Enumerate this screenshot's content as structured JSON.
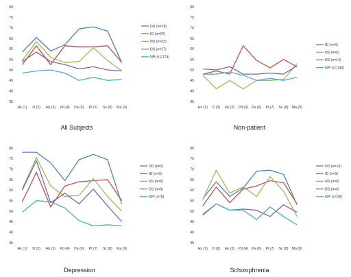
{
  "chart_data": [
    {
      "type": "line",
      "title": "All Subjects",
      "categories": [
        "Hs (1)",
        "D (2)",
        "Hy (3)",
        "Pd (4)",
        "Pa (6)",
        "Pt (7)",
        "Sc (8)",
        "Ma (9)"
      ],
      "ylim": [
        35,
        80
      ],
      "yticks": [
        35,
        40,
        45,
        50,
        55,
        60,
        65,
        70,
        75,
        80
      ],
      "series": [
        {
          "name": "DD (n=18)",
          "color": "#4f81bd",
          "values": [
            58.5,
            65.5,
            59,
            62,
            69.5,
            70.5,
            68.5,
            53.5
          ]
        },
        {
          "name": "ID (n=24)",
          "color": "#c0504d",
          "values": [
            52.5,
            61.5,
            52.5,
            61.5,
            61,
            61,
            61.5,
            53.5
          ]
        },
        {
          "name": "NS (n=22)",
          "color": "#9bbb59",
          "values": [
            54.5,
            63.5,
            56,
            53.5,
            54,
            60.5,
            54.5,
            49.5
          ]
        },
        {
          "name": "DS (n=27)",
          "color": "#8064a2",
          "values": [
            54,
            58.5,
            54,
            52.5,
            50.5,
            51.5,
            50,
            49.5
          ]
        },
        {
          "name": "NPI (n=174)",
          "color": "#4bacc6",
          "values": [
            48.5,
            49.5,
            50,
            48.5,
            45,
            46.5,
            45,
            45.5
          ]
        }
      ]
    },
    {
      "type": "line",
      "title": "Non-patient",
      "categories": [
        "Hs (1)",
        "D (2)",
        "Hy (3)",
        "Pd (4)",
        "Pa (6)",
        "Pt (7)",
        "Sc (8)",
        "Ma (9)"
      ],
      "ylim": [
        35,
        80
      ],
      "yticks": [
        35,
        40,
        45,
        50,
        55,
        60,
        65,
        70,
        75,
        80
      ],
      "series": [
        {
          "name": "ID (n=6)",
          "color": "#c0504d",
          "values": [
            48,
            49.5,
            48,
            61.5,
            54.5,
            51,
            55,
            51.5
          ]
        },
        {
          "name": "NS (n=6)",
          "color": "#9bbb59",
          "values": [
            47.5,
            41,
            45,
            41,
            45,
            45,
            45.5,
            53
          ]
        },
        {
          "name": "DS (n=14)",
          "color": "#8064a2",
          "values": [
            50.5,
            50,
            51.5,
            48,
            48,
            48.5,
            48,
            52
          ]
        },
        {
          "name": "NPI (n=140)",
          "color": "#4bacc6",
          "values": [
            48,
            48,
            49,
            47.5,
            45,
            46,
            45,
            46.5
          ]
        }
      ]
    },
    {
      "type": "line",
      "title": "Depression",
      "categories": [
        "Hs (1)",
        "D (2)",
        "Hy (3)",
        "Pd (4)",
        "Pa (6)",
        "Pt (7)",
        "Sc (8)",
        "Ma (9)"
      ],
      "ylim": [
        35,
        80
      ],
      "yticks": [
        35,
        40,
        45,
        50,
        55,
        60,
        65,
        70,
        75,
        80
      ],
      "series": [
        {
          "name": "DD (n=2)",
          "color": "#4f81bd",
          "values": [
            78,
            78,
            73,
            64.5,
            74.5,
            77,
            74.5,
            53.5
          ]
        },
        {
          "name": "ID (n=9)",
          "color": "#c0504d",
          "values": [
            54.5,
            68.5,
            52,
            62,
            64,
            64.5,
            65,
            55
          ]
        },
        {
          "name": "NS (n=8)",
          "color": "#9bbb59",
          "values": [
            60.5,
            75.5,
            62,
            57,
            57.5,
            65.5,
            57,
            50
          ]
        },
        {
          "name": "DS (n=9)",
          "color": "#8064a2",
          "values": [
            60,
            74,
            54,
            58.5,
            53.5,
            60.5,
            52.5,
            45
          ]
        },
        {
          "name": "NPI (n=8)",
          "color": "#4bacc6",
          "values": [
            49.5,
            55,
            54.5,
            51.5,
            45.5,
            43,
            43.5,
            43
          ]
        }
      ]
    },
    {
      "type": "line",
      "title": "Schizophrenia",
      "categories": [
        "Hs (1)",
        "D (2)",
        "Hy (3)",
        "Pd (4)",
        "Pa (6)",
        "Pt (7)",
        "Sc (8)",
        "Ma (9)"
      ],
      "ylim": [
        35,
        80
      ],
      "yticks": [
        35,
        40,
        45,
        50,
        55,
        60,
        65,
        70,
        75,
        80
      ],
      "series": [
        {
          "name": "DD (n=16)",
          "color": "#4f81bd",
          "values": [
            56,
            64,
            57,
            61,
            69,
            69.5,
            67.5,
            53
          ]
        },
        {
          "name": "ID (n=9)",
          "color": "#c0504d",
          "values": [
            52.5,
            61.5,
            54,
            60.5,
            62,
            64.5,
            63.5,
            53.5
          ]
        },
        {
          "name": "NS (n=8)",
          "color": "#9bbb59",
          "values": [
            55.5,
            69.5,
            58.5,
            61.5,
            57,
            66.5,
            59.5,
            47.5
          ]
        },
        {
          "name": "DS (n=6)",
          "color": "#8064a2",
          "values": [
            48.5,
            53.5,
            50.5,
            51,
            50.5,
            47.5,
            53,
            49.5
          ]
        },
        {
          "name": "NPI (n=26)",
          "color": "#4bacc6",
          "values": [
            48,
            53.5,
            50.5,
            50.5,
            46,
            52,
            47.5,
            43.5
          ]
        }
      ]
    }
  ]
}
